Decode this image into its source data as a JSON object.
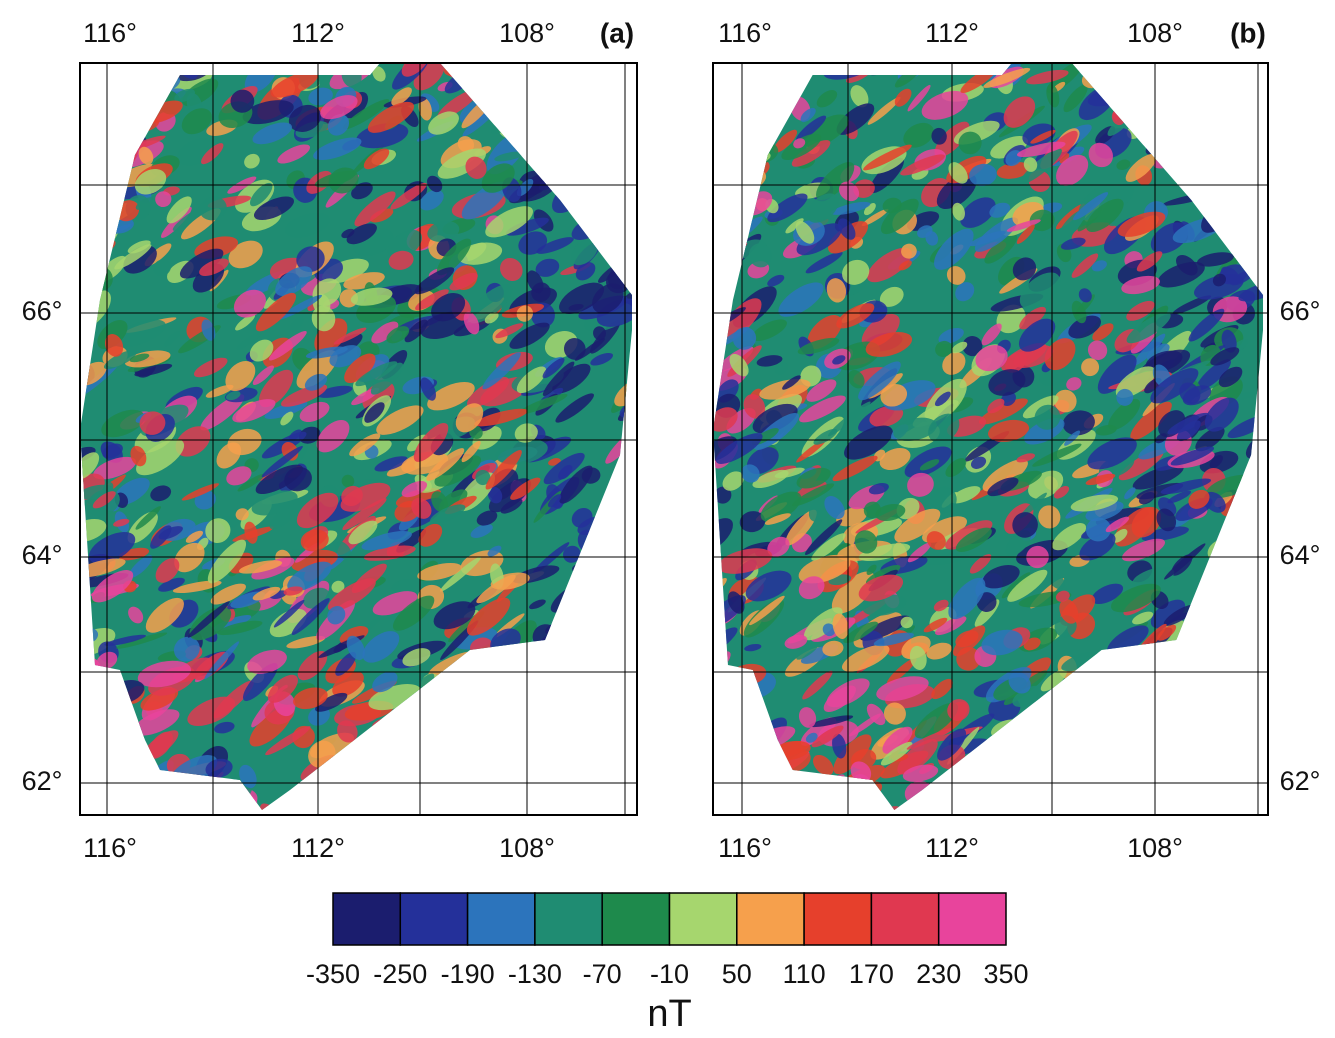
{
  "panels": [
    {
      "label": "(a)",
      "x_ticks": [
        "116°",
        "112°",
        "108°"
      ],
      "y_ticks": [
        "66°",
        "64°",
        "62°"
      ]
    },
    {
      "label": "(b)",
      "x_ticks": [
        "116°",
        "112°",
        "108°"
      ],
      "y_ticks": [
        "66°",
        "64°",
        "62°"
      ]
    }
  ],
  "colorbar": {
    "ticks": [
      -350,
      -250,
      -190,
      -130,
      -70,
      -10,
      50,
      110,
      170,
      230,
      350
    ],
    "colors": [
      "#1b1d6e",
      "#24309a",
      "#2c74bc",
      "#1f8c72",
      "#1e8a4c",
      "#a6d66e",
      "#f6a04c",
      "#e6402c",
      "#e03850",
      "#e8449c"
    ],
    "unit": "nT"
  }
}
